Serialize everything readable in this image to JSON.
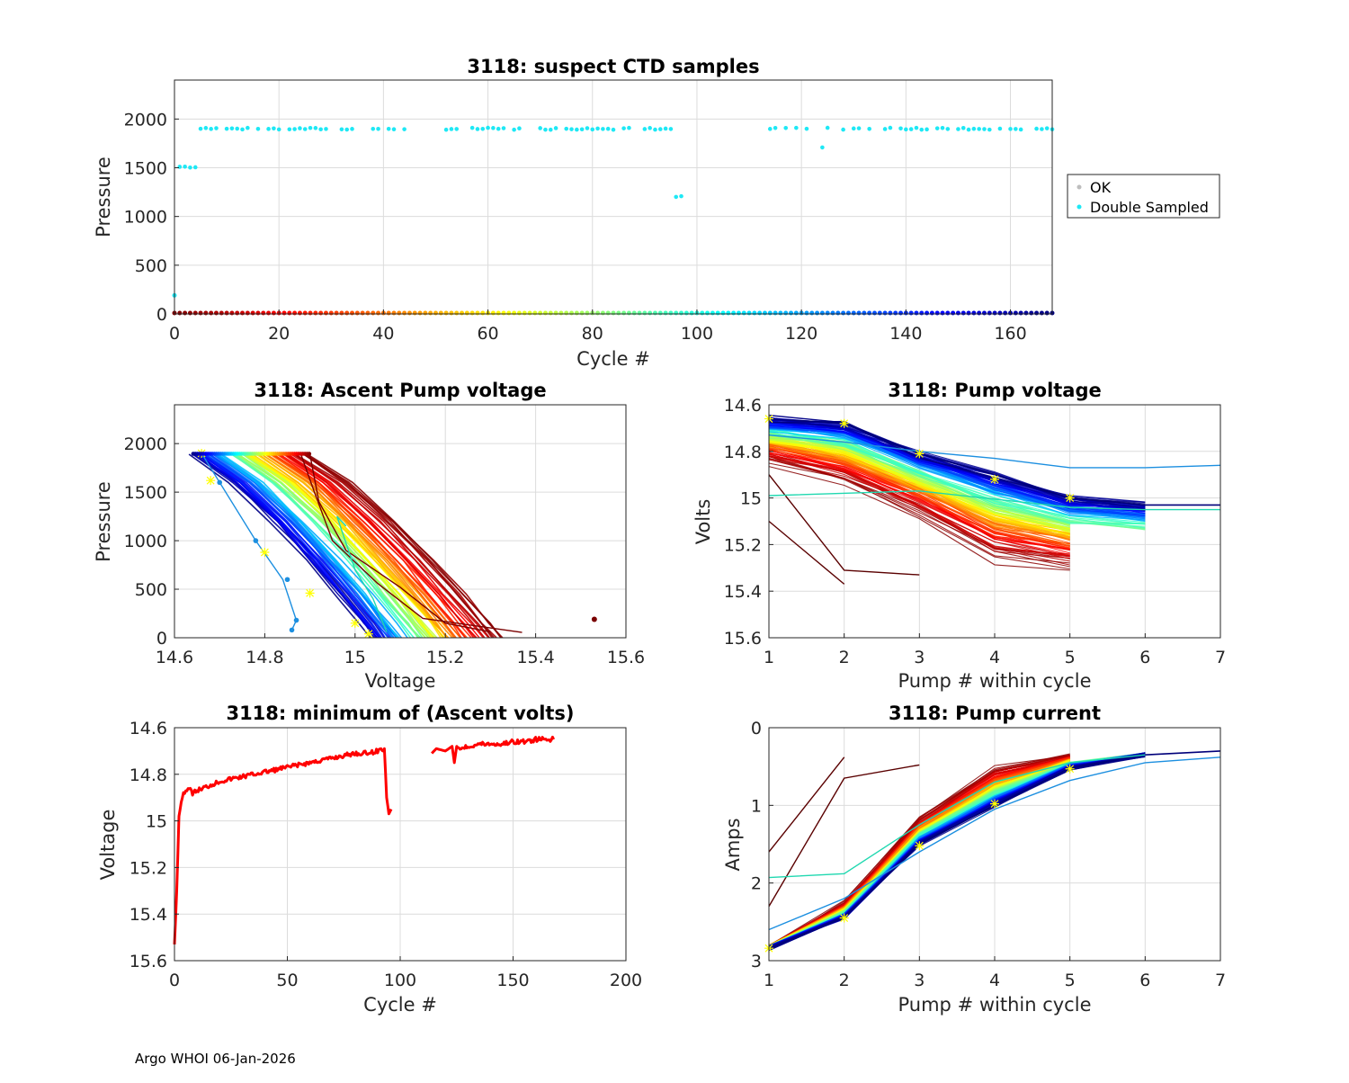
{
  "footer": "Argo WHOI 06-Jan-2026",
  "colors": {
    "ok": "#b7dbb0",
    "double": "#1ee8f5",
    "red": "#ff0000",
    "yellow": "#ffff00"
  },
  "chart_data": [
    {
      "id": "suspect_ctd",
      "type": "scatter",
      "title": "3118: suspect CTD samples",
      "xlabel": "Cycle #",
      "ylabel": "Pressure",
      "xlim": [
        0,
        168
      ],
      "ylim": [
        2400,
        0
      ],
      "xticks": [
        "0",
        "20",
        "40",
        "60",
        "80",
        "100",
        "120",
        "140",
        "160"
      ],
      "yticks": [
        "0",
        "500",
        "1000",
        "1500",
        "2000"
      ],
      "legend": [
        "OK",
        "Double Sampled"
      ],
      "legend_location": "outside-right",
      "profile_depth_segments": [
        {
          "cycles": [
            1,
            4
          ],
          "max_pressure": 1510
        },
        {
          "cycles": [
            5,
            95
          ],
          "max_pressure": 1900
        },
        {
          "cycles": [
            96,
            97
          ],
          "max_pressure": 1200
        },
        {
          "cycles": [
            114,
            123
          ],
          "max_pressure": 1900
        },
        {
          "cycles": [
            124,
            124
          ],
          "max_pressure": 1700
        },
        {
          "cycles": [
            125,
            168
          ],
          "max_pressure": 1900
        }
      ],
      "missing_cycles": [
        98,
        113
      ],
      "double_sampled_extra": [
        {
          "x": 0,
          "y": 190
        }
      ]
    },
    {
      "id": "ascent_pump_voltage",
      "type": "line",
      "title": "3118: Ascent Pump voltage",
      "xlabel": "Voltage",
      "ylabel": "Pressure",
      "xlim": [
        14.6,
        15.6
      ],
      "ylim": [
        2400,
        0
      ],
      "xticks": [
        "14.6",
        "14.8",
        "15",
        "15.2",
        "15.4",
        "15.6"
      ],
      "yticks": [
        "0",
        "500",
        "1000",
        "1500",
        "2000"
      ],
      "note": "one line per cycle colored by cycle number; low pressure at high voltage",
      "envelope": {
        "early_cycles_bottom_voltage": 14.9,
        "early_cycles_top_voltage": 15.33,
        "late_cycles_bottom_voltage": 14.64,
        "late_cycles_top_voltage": 15.04,
        "bottom_pressure": 1890
      },
      "outliers": [
        {
          "x": 15.53,
          "y": 190
        }
      ]
    },
    {
      "id": "pump_voltage",
      "type": "line",
      "title": "3118: Pump voltage",
      "xlabel": "Pump # within cycle",
      "ylabel": "Volts",
      "xlim": [
        1,
        7
      ],
      "ylim": [
        14.6,
        15.6
      ],
      "xticks": [
        "1",
        "2",
        "3",
        "4",
        "5",
        "6",
        "7"
      ],
      "yticks": [
        "14.6",
        "14.8",
        "15",
        "15.2",
        "15.4",
        "15.6"
      ],
      "early_profile": [
        14.85,
        14.94,
        15.08,
        15.27,
        15.31
      ],
      "late_profile": [
        14.66,
        14.68,
        14.81,
        14.9,
        15.0,
        15.03,
        15.03
      ],
      "special_lines": [
        {
          "x": [
            1,
            2,
            3
          ],
          "y": [
            14.9,
            15.31,
            15.33
          ]
        },
        {
          "x": [
            1,
            2
          ],
          "y": [
            15.1,
            15.37
          ]
        },
        {
          "x": [
            1,
            3,
            5,
            6,
            7
          ],
          "y": [
            14.99,
            14.97,
            15.04,
            15.05,
            15.05
          ]
        },
        {
          "x": [
            1,
            2,
            3,
            4,
            5,
            6,
            7
          ],
          "y": [
            14.73,
            14.76,
            14.8,
            14.83,
            14.87,
            14.87,
            14.86
          ]
        }
      ]
    },
    {
      "id": "min_ascent_volts",
      "type": "line",
      "title": "3118: minimum of (Ascent volts)",
      "xlabel": "Cycle #",
      "ylabel": "Voltage",
      "xlim": [
        0,
        200
      ],
      "ylim": [
        14.6,
        15.6
      ],
      "xticks": [
        "0",
        "50",
        "100",
        "150",
        "200"
      ],
      "yticks": [
        "14.6",
        "14.8",
        "15",
        "15.2",
        "15.4",
        "15.6"
      ],
      "series": [
        {
          "name": "min ascent volts",
          "x": [
            0,
            1,
            2,
            3,
            4,
            6,
            8,
            10,
            15,
            20,
            25,
            30,
            35,
            40,
            45,
            50,
            55,
            60,
            65,
            70,
            75,
            80,
            85,
            90,
            93,
            94,
            95,
            96
          ],
          "y": [
            15.53,
            15.3,
            14.98,
            14.92,
            14.88,
            14.86,
            14.88,
            14.87,
            14.85,
            14.83,
            14.82,
            14.81,
            14.8,
            14.79,
            14.78,
            14.77,
            14.76,
            14.75,
            14.74,
            14.73,
            14.72,
            14.71,
            14.71,
            14.7,
            14.69,
            14.9,
            14.97,
            14.95
          ]
        },
        {
          "name": "min ascent volts (after gap)",
          "x": [
            114,
            116,
            120,
            123,
            124,
            125,
            126,
            130,
            135,
            140,
            145,
            150,
            155,
            160,
            165,
            168
          ],
          "y": [
            14.71,
            14.69,
            14.7,
            14.68,
            14.75,
            14.68,
            14.69,
            14.68,
            14.67,
            14.67,
            14.67,
            14.66,
            14.66,
            14.65,
            14.65,
            14.65
          ]
        }
      ]
    },
    {
      "id": "pump_current",
      "type": "line",
      "title": "3118: Pump current",
      "xlabel": "Pump # within cycle",
      "ylabel": "Amps",
      "xlim": [
        1,
        7
      ],
      "ylim": [
        0,
        3
      ],
      "xticks": [
        "1",
        "2",
        "3",
        "4",
        "5",
        "6",
        "7"
      ],
      "yticks": [
        "0",
        "1",
        "2",
        "3"
      ],
      "early_profile": [
        2.82,
        2.25,
        1.15,
        0.5,
        0.35
      ],
      "late_profile": [
        2.84,
        2.45,
        1.5,
        1.0,
        0.52,
        0.35,
        0.3
      ],
      "special_lines": [
        {
          "x": [
            1,
            2,
            3
          ],
          "y": [
            2.3,
            0.65,
            0.48
          ]
        },
        {
          "x": [
            1,
            2
          ],
          "y": [
            1.6,
            0.38
          ]
        },
        {
          "x": [
            1,
            2,
            3,
            4,
            5,
            6
          ],
          "y": [
            1.93,
            1.88,
            1.25,
            0.7,
            0.45,
            0.35
          ]
        },
        {
          "x": [
            1,
            2,
            3,
            4,
            5,
            6,
            7
          ],
          "y": [
            2.6,
            2.2,
            1.6,
            1.05,
            0.68,
            0.45,
            0.38
          ]
        }
      ]
    }
  ]
}
